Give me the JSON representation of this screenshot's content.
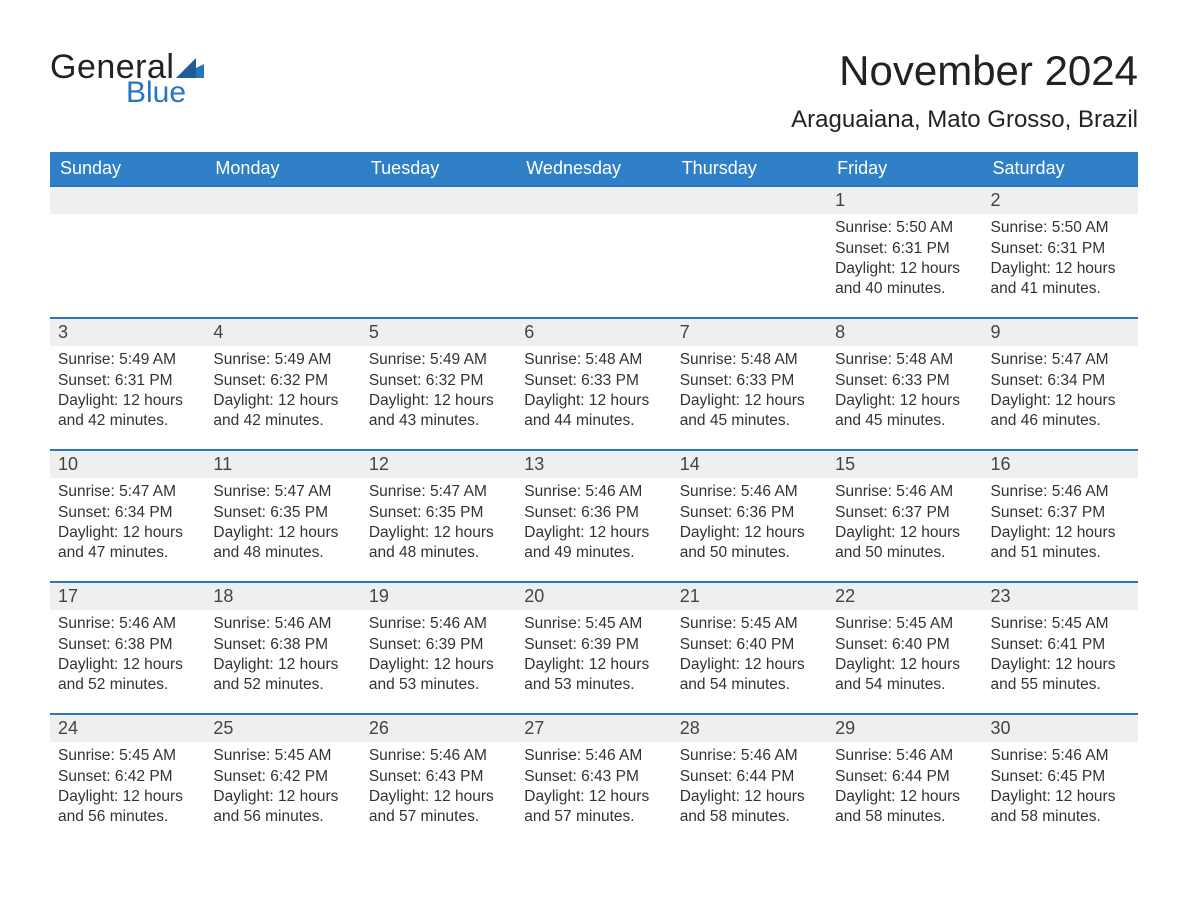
{
  "brand": {
    "word1": "General",
    "word2": "Blue",
    "flag_color": "#2676c0"
  },
  "title": "November 2024",
  "location": "Araguaiana, Mato Grosso, Brazil",
  "colors": {
    "header_bg": "#3080c8",
    "header_text": "#ffffff",
    "row_divider": "#2676c0",
    "daynum_bg": "#efefef",
    "page_bg": "#ffffff",
    "text": "#333333"
  },
  "typography": {
    "title_fontsize_pt": 32,
    "location_fontsize_pt": 18,
    "header_fontsize_pt": 14,
    "daynum_fontsize_pt": 14,
    "body_fontsize_pt": 12,
    "font_family": "Arial"
  },
  "layout": {
    "columns": 7,
    "rows": 5,
    "first_weekday": "Sunday"
  },
  "weekdays": [
    "Sunday",
    "Monday",
    "Tuesday",
    "Wednesday",
    "Thursday",
    "Friday",
    "Saturday"
  ],
  "weeks": [
    [
      null,
      null,
      null,
      null,
      null,
      {
        "n": "1",
        "sunrise": "5:50 AM",
        "sunset": "6:31 PM",
        "daylight": "12 hours and 40 minutes."
      },
      {
        "n": "2",
        "sunrise": "5:50 AM",
        "sunset": "6:31 PM",
        "daylight": "12 hours and 41 minutes."
      }
    ],
    [
      {
        "n": "3",
        "sunrise": "5:49 AM",
        "sunset": "6:31 PM",
        "daylight": "12 hours and 42 minutes."
      },
      {
        "n": "4",
        "sunrise": "5:49 AM",
        "sunset": "6:32 PM",
        "daylight": "12 hours and 42 minutes."
      },
      {
        "n": "5",
        "sunrise": "5:49 AM",
        "sunset": "6:32 PM",
        "daylight": "12 hours and 43 minutes."
      },
      {
        "n": "6",
        "sunrise": "5:48 AM",
        "sunset": "6:33 PM",
        "daylight": "12 hours and 44 minutes."
      },
      {
        "n": "7",
        "sunrise": "5:48 AM",
        "sunset": "6:33 PM",
        "daylight": "12 hours and 45 minutes."
      },
      {
        "n": "8",
        "sunrise": "5:48 AM",
        "sunset": "6:33 PM",
        "daylight": "12 hours and 45 minutes."
      },
      {
        "n": "9",
        "sunrise": "5:47 AM",
        "sunset": "6:34 PM",
        "daylight": "12 hours and 46 minutes."
      }
    ],
    [
      {
        "n": "10",
        "sunrise": "5:47 AM",
        "sunset": "6:34 PM",
        "daylight": "12 hours and 47 minutes."
      },
      {
        "n": "11",
        "sunrise": "5:47 AM",
        "sunset": "6:35 PM",
        "daylight": "12 hours and 48 minutes."
      },
      {
        "n": "12",
        "sunrise": "5:47 AM",
        "sunset": "6:35 PM",
        "daylight": "12 hours and 48 minutes."
      },
      {
        "n": "13",
        "sunrise": "5:46 AM",
        "sunset": "6:36 PM",
        "daylight": "12 hours and 49 minutes."
      },
      {
        "n": "14",
        "sunrise": "5:46 AM",
        "sunset": "6:36 PM",
        "daylight": "12 hours and 50 minutes."
      },
      {
        "n": "15",
        "sunrise": "5:46 AM",
        "sunset": "6:37 PM",
        "daylight": "12 hours and 50 minutes."
      },
      {
        "n": "16",
        "sunrise": "5:46 AM",
        "sunset": "6:37 PM",
        "daylight": "12 hours and 51 minutes."
      }
    ],
    [
      {
        "n": "17",
        "sunrise": "5:46 AM",
        "sunset": "6:38 PM",
        "daylight": "12 hours and 52 minutes."
      },
      {
        "n": "18",
        "sunrise": "5:46 AM",
        "sunset": "6:38 PM",
        "daylight": "12 hours and 52 minutes."
      },
      {
        "n": "19",
        "sunrise": "5:46 AM",
        "sunset": "6:39 PM",
        "daylight": "12 hours and 53 minutes."
      },
      {
        "n": "20",
        "sunrise": "5:45 AM",
        "sunset": "6:39 PM",
        "daylight": "12 hours and 53 minutes."
      },
      {
        "n": "21",
        "sunrise": "5:45 AM",
        "sunset": "6:40 PM",
        "daylight": "12 hours and 54 minutes."
      },
      {
        "n": "22",
        "sunrise": "5:45 AM",
        "sunset": "6:40 PM",
        "daylight": "12 hours and 54 minutes."
      },
      {
        "n": "23",
        "sunrise": "5:45 AM",
        "sunset": "6:41 PM",
        "daylight": "12 hours and 55 minutes."
      }
    ],
    [
      {
        "n": "24",
        "sunrise": "5:45 AM",
        "sunset": "6:42 PM",
        "daylight": "12 hours and 56 minutes."
      },
      {
        "n": "25",
        "sunrise": "5:45 AM",
        "sunset": "6:42 PM",
        "daylight": "12 hours and 56 minutes."
      },
      {
        "n": "26",
        "sunrise": "5:46 AM",
        "sunset": "6:43 PM",
        "daylight": "12 hours and 57 minutes."
      },
      {
        "n": "27",
        "sunrise": "5:46 AM",
        "sunset": "6:43 PM",
        "daylight": "12 hours and 57 minutes."
      },
      {
        "n": "28",
        "sunrise": "5:46 AM",
        "sunset": "6:44 PM",
        "daylight": "12 hours and 58 minutes."
      },
      {
        "n": "29",
        "sunrise": "5:46 AM",
        "sunset": "6:44 PM",
        "daylight": "12 hours and 58 minutes."
      },
      {
        "n": "30",
        "sunrise": "5:46 AM",
        "sunset": "6:45 PM",
        "daylight": "12 hours and 58 minutes."
      }
    ]
  ],
  "labels": {
    "sunrise": "Sunrise: ",
    "sunset": "Sunset: ",
    "daylight": "Daylight: "
  }
}
